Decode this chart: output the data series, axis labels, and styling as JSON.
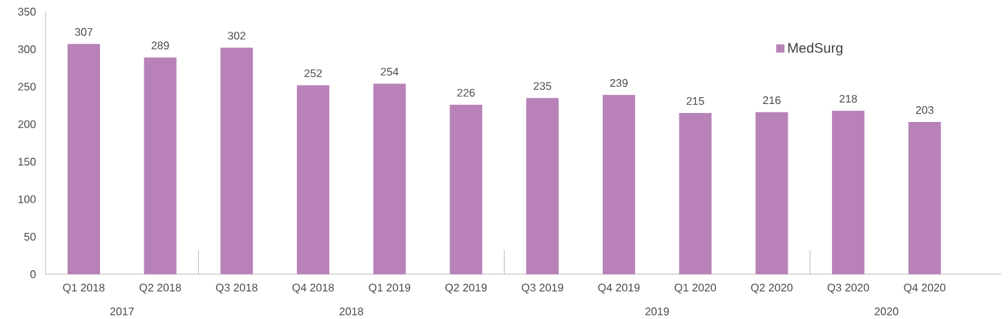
{
  "chart_data": {
    "type": "bar",
    "categories": [
      "Q1 2018",
      "Q2 2018",
      "Q3 2018",
      "Q4 2018",
      "Q1 2019",
      "Q2 2019",
      "Q3 2019",
      "Q4 2019",
      "Q1 2020",
      "Q2 2020",
      "Q3 2020",
      "Q4 2020"
    ],
    "series": [
      {
        "name": "MedSurg",
        "color": "#b882b9",
        "values": [
          307,
          289,
          302,
          252,
          254,
          226,
          235,
          239,
          215,
          216,
          218,
          203
        ]
      }
    ],
    "ylim": [
      0,
      350
    ],
    "yticks": [
      0,
      50,
      100,
      150,
      200,
      250,
      300,
      350
    ],
    "data_labels": true,
    "legend": "top right",
    "grid": false,
    "annotations": [
      "2017",
      "2018",
      "2019",
      "2020"
    ]
  }
}
